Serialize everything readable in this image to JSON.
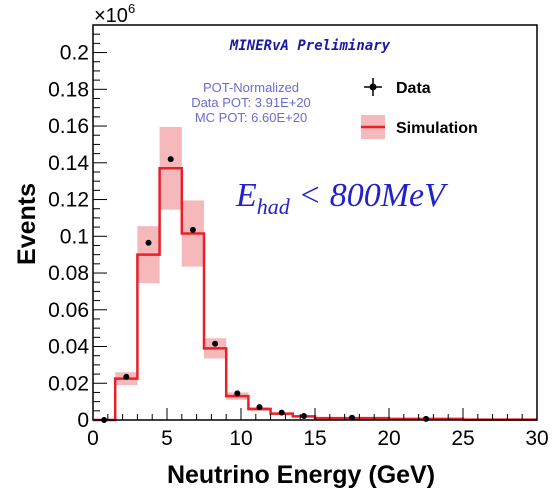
{
  "chart_data": {
    "type": "histogram",
    "title": "MINERvA Preliminary",
    "xlabel": "Neutrino Energy (GeV)",
    "ylabel": "Events",
    "y_multiplier_label": "×10",
    "y_multiplier_exponent": "6",
    "xlim": [
      0,
      30
    ],
    "ylim": [
      0,
      0.215
    ],
    "x_ticks": [
      0,
      5,
      10,
      15,
      20,
      25,
      30
    ],
    "x_tick_labels": [
      "0",
      "5",
      "10",
      "15",
      "20",
      "25",
      "30"
    ],
    "y_ticks": [
      0,
      0.02,
      0.04,
      0.06,
      0.08,
      0.1,
      0.12,
      0.14,
      0.16,
      0.18,
      0.2
    ],
    "y_tick_labels": [
      "0",
      "0.02",
      "0.04",
      "0.06",
      "0.08",
      "0.1",
      "0.12",
      "0.14",
      "0.16",
      "0.18",
      "0.2"
    ],
    "pot_text": [
      "POT-Normalized",
      "Data POT: 3.91E+20",
      "MC POT: 6.60E+20"
    ],
    "cut_label": {
      "main": "E",
      "sub": "had",
      "rest": " < 800MeV"
    },
    "legend": [
      {
        "name": "Data",
        "marker": "point-with-error",
        "color": "#000000"
      },
      {
        "name": "Simulation",
        "marker": "line-with-band",
        "color": "#e8202a",
        "band_color": "#f6b9bb"
      }
    ],
    "simulation_bins": [
      {
        "x_low": 0,
        "x_high": 1.5,
        "value": 0.0,
        "err": 0.0
      },
      {
        "x_low": 1.5,
        "x_high": 3,
        "value": 0.0225,
        "err": 0.0035
      },
      {
        "x_low": 3,
        "x_high": 4.5,
        "value": 0.09,
        "err": 0.0155
      },
      {
        "x_low": 4.5,
        "x_high": 6,
        "value": 0.137,
        "err": 0.0225
      },
      {
        "x_low": 6,
        "x_high": 7.5,
        "value": 0.1015,
        "err": 0.018
      },
      {
        "x_low": 7.5,
        "x_high": 9,
        "value": 0.039,
        "err": 0.0055
      },
      {
        "x_low": 9,
        "x_high": 10.5,
        "value": 0.013,
        "err": 0.002
      },
      {
        "x_low": 10.5,
        "x_high": 12,
        "value": 0.006,
        "err": 0.001
      },
      {
        "x_low": 12,
        "x_high": 13.5,
        "value": 0.0035,
        "err": 0.0006
      },
      {
        "x_low": 13.5,
        "x_high": 15,
        "value": 0.002,
        "err": 0.0004
      },
      {
        "x_low": 15,
        "x_high": 20,
        "value": 0.001,
        "err": 0.0002
      },
      {
        "x_low": 20,
        "x_high": 25,
        "value": 0.0006,
        "err": 0.0001
      },
      {
        "x_low": 25,
        "x_high": 30,
        "value": 0.0002,
        "err": 0.0001
      }
    ],
    "data_points": [
      {
        "x": 0.75,
        "y": 0.0
      },
      {
        "x": 2.25,
        "y": 0.0235
      },
      {
        "x": 3.75,
        "y": 0.0965
      },
      {
        "x": 5.25,
        "y": 0.142
      },
      {
        "x": 6.75,
        "y": 0.1035
      },
      {
        "x": 8.25,
        "y": 0.0415
      },
      {
        "x": 9.75,
        "y": 0.0145
      },
      {
        "x": 11.25,
        "y": 0.007
      },
      {
        "x": 12.75,
        "y": 0.004
      },
      {
        "x": 14.25,
        "y": 0.0022
      },
      {
        "x": 17.5,
        "y": 0.0012
      },
      {
        "x": 22.5,
        "y": 0.0006
      }
    ]
  }
}
